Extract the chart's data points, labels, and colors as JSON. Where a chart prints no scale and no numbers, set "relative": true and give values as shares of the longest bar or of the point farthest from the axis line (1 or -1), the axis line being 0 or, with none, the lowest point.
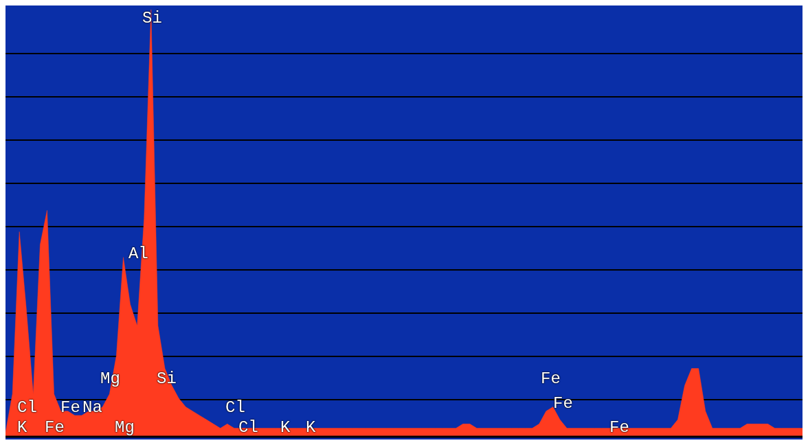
{
  "chart_data": {
    "type": "area",
    "relative": true,
    "grid": "y",
    "color": "#ff3b1f",
    "categories": [
      null,
      null,
      null,
      null,
      null,
      null,
      null,
      null,
      null,
      null,
      null,
      null,
      null,
      null,
      null,
      null,
      null,
      null,
      null,
      null,
      null,
      null,
      null,
      null,
      null,
      null,
      null,
      null,
      null,
      null,
      null,
      null,
      null,
      null,
      null,
      null,
      null,
      null,
      null,
      null,
      null,
      null,
      null,
      null,
      null,
      null,
      null,
      null,
      null,
      null,
      null,
      null,
      null,
      null,
      null,
      null,
      null,
      null,
      null,
      null,
      null,
      null,
      null,
      null,
      null,
      null,
      null,
      null,
      null,
      null,
      null,
      null,
      null,
      null,
      null,
      null,
      null,
      null,
      null,
      null,
      null,
      null,
      null,
      null,
      null,
      null,
      null,
      null,
      null,
      null,
      null,
      null,
      null,
      null,
      null,
      null,
      null,
      null,
      null,
      null,
      null,
      null,
      null,
      null,
      null,
      null,
      null,
      null,
      null,
      null,
      null,
      null,
      null,
      null,
      null,
      null
    ],
    "values": [
      0.01,
      0.1,
      0.48,
      0.3,
      0.1,
      0.45,
      0.53,
      0.1,
      0.06,
      0.06,
      0.05,
      0.05,
      0.06,
      0.06,
      0.07,
      0.1,
      0.19,
      0.42,
      0.31,
      0.26,
      0.51,
      1,
      0.26,
      0.16,
      0.12,
      0.09,
      0.07,
      0.06,
      0.05,
      0.04,
      0.03,
      0.02,
      0.03,
      0.02,
      0.02,
      0.02,
      0.02,
      0.02,
      0.02,
      0.02,
      0.02,
      0.02,
      0.02,
      0.02,
      0.02,
      0.02,
      0.02,
      0.02,
      0.02,
      0.02,
      0.02,
      0.02,
      0.02,
      0.02,
      0.02,
      0.02,
      0.02,
      0.02,
      0.02,
      0.02,
      0.02,
      0.02,
      0.02,
      0.02,
      0.02,
      0.02,
      0.03,
      0.03,
      0.02,
      0.02,
      0.02,
      0.02,
      0.02,
      0.02,
      0.02,
      0.02,
      0.02,
      0.03,
      0.06,
      0.07,
      0.04,
      0.02,
      0.02,
      0.02,
      0.02,
      0.02,
      0.02,
      0.02,
      0.02,
      0.02,
      0.02,
      0.02,
      0.02,
      0.02,
      0.02,
      0.02,
      0.02,
      0.04,
      0.12,
      0.16,
      0.16,
      0.06,
      0.02,
      0.02,
      0.02,
      0.02,
      0.02,
      0.03,
      0.03,
      0.03,
      0.03,
      0.02,
      0.02,
      0.02,
      0.02,
      0.02
    ],
    "annotations": [
      "Si",
      "Al",
      "Mg",
      "Si",
      "Cl",
      "Fe",
      "Na",
      "K",
      "Fe",
      "Mg",
      "Cl",
      "Cl",
      "K",
      "K",
      "Fe",
      "Fe",
      "Fe"
    ]
  }
}
